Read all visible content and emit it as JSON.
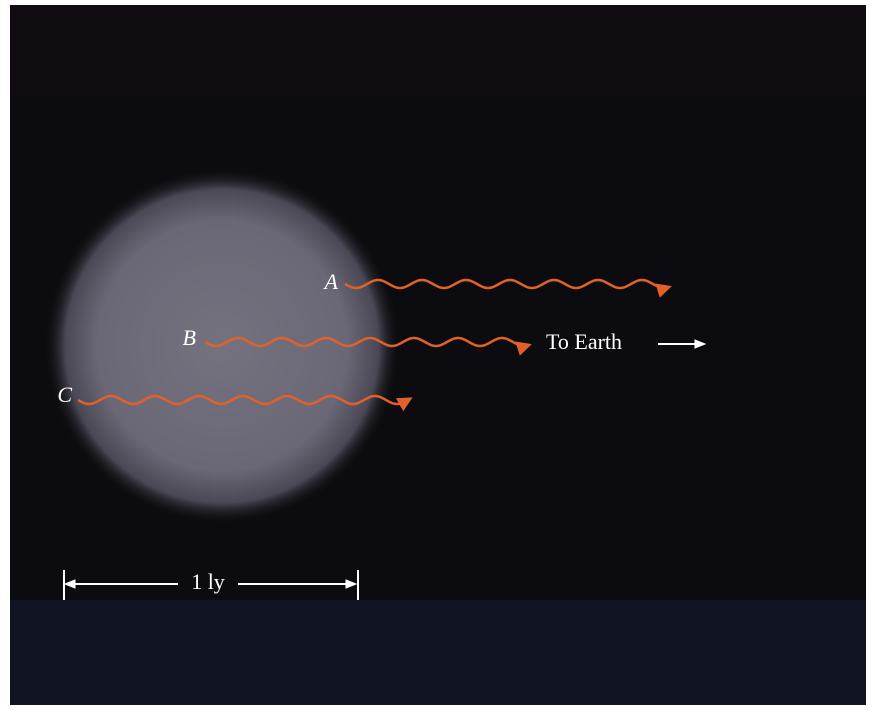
{
  "rays": [
    {
      "label": "A"
    },
    {
      "label": "B"
    },
    {
      "label": "C"
    }
  ],
  "to_earth_label": "To Earth",
  "scale_label": "1 ly"
}
